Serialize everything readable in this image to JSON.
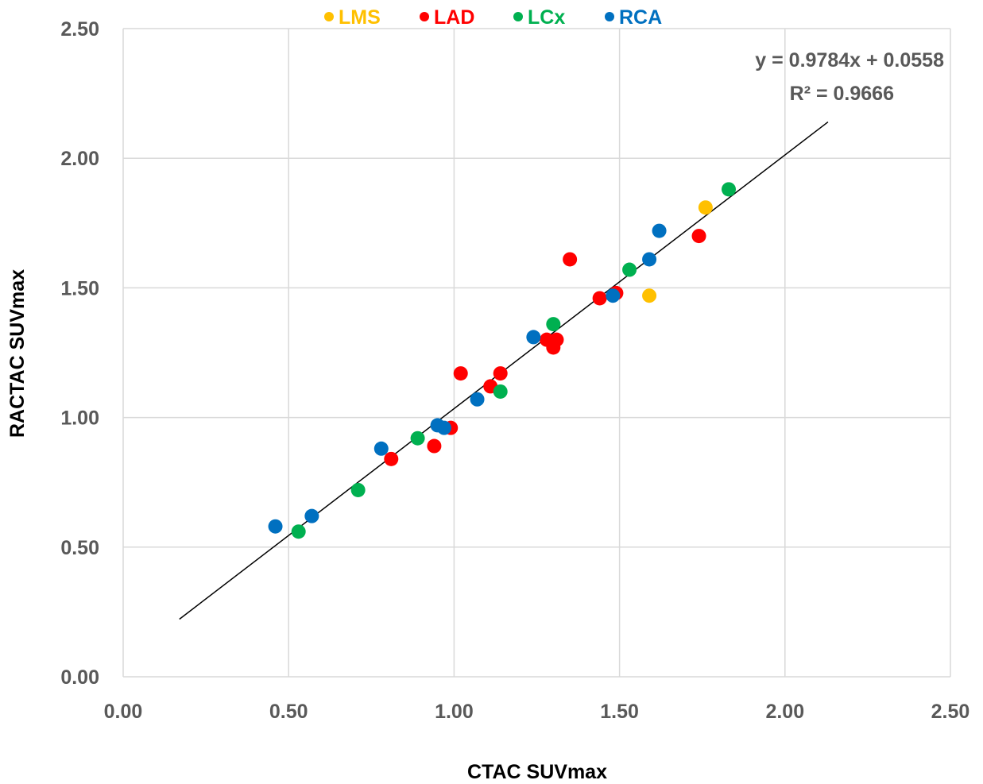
{
  "chart_data": {
    "type": "scatter",
    "xlabel": "CTAC SUVmax",
    "ylabel": "RACTAC SUVmax",
    "xlim": [
      0,
      2.5
    ],
    "ylim": [
      0,
      2.5
    ],
    "x_ticks": [
      "0.00",
      "0.50",
      "1.00",
      "1.50",
      "2.00",
      "2.50"
    ],
    "y_ticks": [
      "0.00",
      "0.50",
      "1.00",
      "1.50",
      "2.00",
      "2.50"
    ],
    "grid": true,
    "legend_position": "top",
    "series": [
      {
        "name": "LMS",
        "color": "#FFC000",
        "points": [
          [
            1.76,
            1.81
          ],
          [
            1.59,
            1.47
          ]
        ]
      },
      {
        "name": "LAD",
        "color": "#FF0000",
        "points": [
          [
            0.81,
            0.84
          ],
          [
            0.94,
            0.89
          ],
          [
            0.99,
            0.96
          ],
          [
            1.02,
            1.17
          ],
          [
            1.11,
            1.12
          ],
          [
            1.14,
            1.17
          ],
          [
            1.28,
            1.3
          ],
          [
            1.3,
            1.27
          ],
          [
            1.31,
            1.3
          ],
          [
            1.35,
            1.61
          ],
          [
            1.44,
            1.46
          ],
          [
            1.49,
            1.48
          ],
          [
            1.74,
            1.7
          ]
        ]
      },
      {
        "name": "LCx",
        "color": "#00B050",
        "points": [
          [
            0.53,
            0.56
          ],
          [
            0.71,
            0.72
          ],
          [
            0.89,
            0.92
          ],
          [
            1.14,
            1.1
          ],
          [
            1.3,
            1.36
          ],
          [
            1.53,
            1.57
          ],
          [
            1.83,
            1.88
          ]
        ]
      },
      {
        "name": "RCA",
        "color": "#0070C0",
        "points": [
          [
            0.46,
            0.58
          ],
          [
            0.57,
            0.62
          ],
          [
            0.78,
            0.88
          ],
          [
            0.95,
            0.97
          ],
          [
            0.97,
            0.96
          ],
          [
            1.07,
            1.07
          ],
          [
            1.24,
            1.31
          ],
          [
            1.48,
            1.47
          ],
          [
            1.59,
            1.61
          ],
          [
            1.62,
            1.72
          ]
        ]
      }
    ],
    "trendline": {
      "slope": 0.9784,
      "intercept": 0.0558,
      "x_range": [
        0.17,
        2.13
      ],
      "equation_label": "y = 0.9784x + 0.0558",
      "r2_label": "R² = 0.9666"
    }
  }
}
